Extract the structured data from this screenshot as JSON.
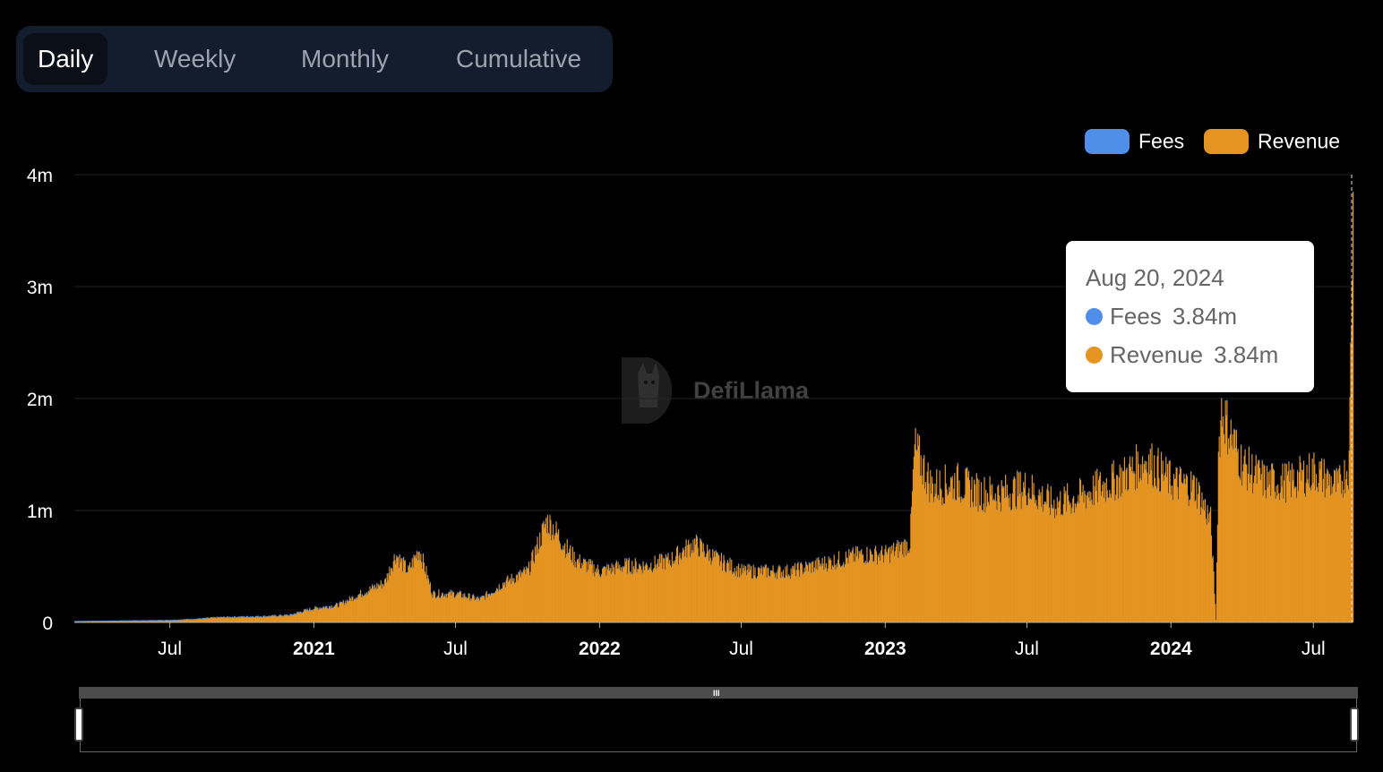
{
  "tabs": [
    {
      "label": "Daily",
      "active": true
    },
    {
      "label": "Weekly",
      "active": false
    },
    {
      "label": "Monthly",
      "active": false
    },
    {
      "label": "Cumulative",
      "active": false
    }
  ],
  "legend": [
    {
      "label": "Fees",
      "color": "#4f8fea"
    },
    {
      "label": "Revenue",
      "color": "#e59421"
    }
  ],
  "tooltip": {
    "date": "Aug 20, 2024",
    "rows": [
      {
        "label": "Fees",
        "value": "3.84m",
        "color": "#4f8fea"
      },
      {
        "label": "Revenue",
        "value": "3.84m",
        "color": "#e59421"
      }
    ]
  },
  "watermark": "DefiLlama",
  "chart_data": {
    "type": "bar",
    "x_range": [
      "2020-03-01",
      "2024-08-20"
    ],
    "ylim": [
      0,
      4000000
    ],
    "y_ticks": [
      {
        "value": 0,
        "label": "0"
      },
      {
        "value": 1000000,
        "label": "1m"
      },
      {
        "value": 2000000,
        "label": "2m"
      },
      {
        "value": 3000000,
        "label": "3m"
      },
      {
        "value": 4000000,
        "label": "4m"
      }
    ],
    "x_ticks": [
      {
        "date": "2020-07-01",
        "label": "Jul",
        "year": false
      },
      {
        "date": "2021-01-01",
        "label": "2021",
        "year": true
      },
      {
        "date": "2021-07-01",
        "label": "Jul",
        "year": false
      },
      {
        "date": "2022-01-01",
        "label": "2022",
        "year": true
      },
      {
        "date": "2022-07-01",
        "label": "Jul",
        "year": false
      },
      {
        "date": "2023-01-01",
        "label": "2023",
        "year": true
      },
      {
        "date": "2023-07-01",
        "label": "Jul",
        "year": false
      },
      {
        "date": "2024-01-01",
        "label": "2024",
        "year": true
      },
      {
        "date": "2024-07-01",
        "label": "Jul",
        "year": false
      }
    ],
    "legend_position": "top-right",
    "grid": true,
    "series": [
      {
        "name": "Fees",
        "color": "#4f8fea"
      },
      {
        "name": "Revenue",
        "color": "#e59421"
      }
    ],
    "x": [
      "2020-03-01",
      "2020-04-01",
      "2020-05-01",
      "2020-06-01",
      "2020-07-01",
      "2020-08-01",
      "2020-09-01",
      "2020-10-01",
      "2020-11-01",
      "2020-12-01",
      "2020-12-20",
      "2021-01-01",
      "2021-02-01",
      "2021-03-01",
      "2021-04-01",
      "2021-04-15",
      "2021-05-01",
      "2021-05-15",
      "2021-06-01",
      "2021-07-01",
      "2021-08-01",
      "2021-09-01",
      "2021-10-01",
      "2021-10-25",
      "2021-11-01",
      "2021-11-20",
      "2021-12-01",
      "2022-01-01",
      "2022-02-01",
      "2022-03-01",
      "2022-04-01",
      "2022-05-01",
      "2022-06-01",
      "2022-07-01",
      "2022-08-01",
      "2022-09-01",
      "2022-10-01",
      "2022-11-01",
      "2022-12-01",
      "2023-01-01",
      "2023-02-01",
      "2023-02-07",
      "2023-03-01",
      "2023-04-01",
      "2023-05-01",
      "2023-06-01",
      "2023-07-01",
      "2023-08-01",
      "2023-09-01",
      "2023-10-01",
      "2023-11-01",
      "2023-12-01",
      "2024-01-01",
      "2024-02-01",
      "2024-02-20",
      "2024-02-27",
      "2024-03-01",
      "2024-03-05",
      "2024-03-15",
      "2024-04-01",
      "2024-05-01",
      "2024-06-01",
      "2024-07-01",
      "2024-08-01",
      "2024-08-15",
      "2024-08-20"
    ],
    "values": [
      5000,
      8000,
      10000,
      12000,
      15000,
      25000,
      40000,
      45000,
      50000,
      60000,
      100000,
      120000,
      150000,
      250000,
      350000,
      600000,
      450000,
      650000,
      250000,
      250000,
      200000,
      350000,
      450000,
      900000,
      850000,
      650000,
      550000,
      450000,
      500000,
      500000,
      550000,
      700000,
      550000,
      450000,
      450000,
      450000,
      500000,
      550000,
      600000,
      600000,
      700000,
      1550000,
      1200000,
      1250000,
      1150000,
      1150000,
      1200000,
      1050000,
      1100000,
      1200000,
      1300000,
      1450000,
      1250000,
      1200000,
      900000,
      20000,
      1500000,
      1900000,
      1700000,
      1400000,
      1250000,
      1250000,
      1350000,
      1200000,
      1400000,
      3840000
    ]
  }
}
